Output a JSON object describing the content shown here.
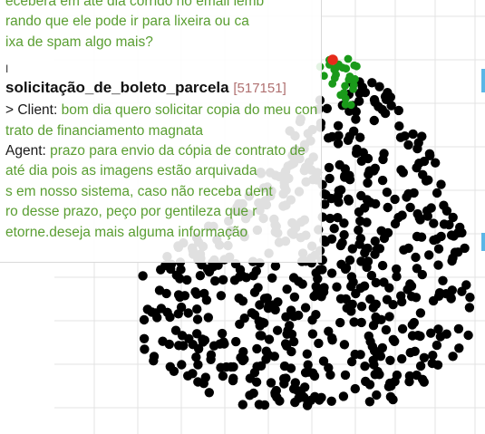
{
  "colors": {
    "background": "#ffffff",
    "grid": "#e3e3e3",
    "point_default": "#000000",
    "point_cluster": "#1a9a1a",
    "point_selected": "#e52a1a",
    "text_green": "#5a9e32",
    "text_dark": "#1a1a1a",
    "id_color": "#b07070",
    "edge_mark": "#5bb6e6"
  },
  "tooltip": {
    "prev_lines": [
      "ecebera em até dia corrido no email lemb",
      "rando que ele pode ir para lixeira ou ca",
      "ixa de spam algo mais?"
    ],
    "caret": "I",
    "title": "solicitação_de_boleto_parcela",
    "title_id": "[517151]",
    "client_label": "> Client:",
    "client_lines": [
      "bom dia quero solicitar copia do meu con",
      "trato de financiamento magnata"
    ],
    "agent_label": "Agent:",
    "agent_lines": [
      "prazo para envio da cópia de contrato de",
      "até dia pois as imagens estão arquivada",
      "s em nosso sistema, caso não receba dent",
      "ro desse prazo, peço por gentileza que r",
      "etorne.deseja mais alguma informação"
    ]
  },
  "scatter": {
    "point_count_black": 620,
    "point_count_green": 26,
    "selected_point_count": 1
  }
}
